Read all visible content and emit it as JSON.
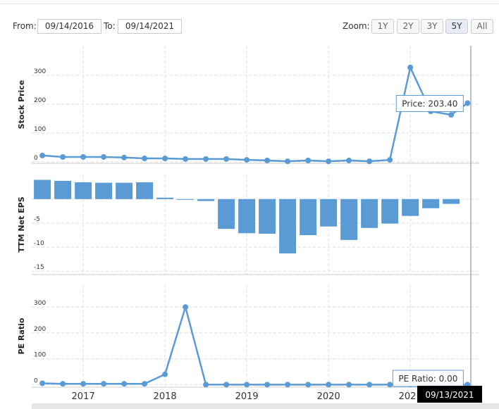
{
  "controls": {
    "from_label": "From:",
    "from": "09/14/2016",
    "to_label": "To:",
    "to": "09/14/2021",
    "zoom_label": "Zoom:",
    "zoom": [
      "1Y",
      "2Y",
      "3Y",
      "5Y",
      "All"
    ],
    "zoom_active": 3
  },
  "crosshair_date": "09/13/2021",
  "chart_data": [
    {
      "type": "line",
      "y_label": "Stock Price",
      "color": "#5b9bd5",
      "tooltip": "Price: 203.40",
      "x": [
        2016.5,
        2016.75,
        2017,
        2017.25,
        2017.5,
        2017.75,
        2018,
        2018.25,
        2018.5,
        2018.75,
        2019,
        2019.25,
        2019.5,
        2019.75,
        2020,
        2020.25,
        2020.5,
        2020.75,
        2021,
        2021.25,
        2021.5,
        2021.7
      ],
      "values": [
        22,
        17,
        17,
        17,
        15,
        12,
        12,
        10,
        10,
        10,
        7,
        5,
        2,
        5,
        2,
        5,
        2,
        7,
        327,
        175,
        163,
        203.4
      ],
      "xlim": [
        2016.37,
        2021.74
      ],
      "xticks": [
        2017,
        2018,
        2019,
        2020,
        2021
      ],
      "ylim": [
        -5,
        402
      ],
      "yticks": [
        0,
        100,
        200,
        300
      ],
      "grid": true
    },
    {
      "type": "bar",
      "y_label": "TTM Net EPS",
      "color": "#5b9bd5",
      "x": [
        2016.5,
        2016.75,
        2017,
        2017.25,
        2017.5,
        2017.75,
        2018,
        2018.25,
        2018.5,
        2018.75,
        2019,
        2019.25,
        2019.5,
        2019.75,
        2020,
        2020.25,
        2020.5,
        2020.75,
        2021,
        2021.25,
        2021.5
      ],
      "values": [
        4.0,
        3.8,
        3.5,
        3.4,
        3.4,
        3.5,
        0.3,
        -0.1,
        -0.4,
        -6.2,
        -7.1,
        -7.2,
        -11.3,
        -7.5,
        -5.7,
        -8.5,
        -6.0,
        -5.1,
        -3.5,
        -1.9,
        -1.0
      ],
      "xlim": [
        2016.37,
        2021.74
      ],
      "xticks": [
        2017,
        2018,
        2019,
        2020,
        2021
      ],
      "ylim": [
        -15.7,
        5.1
      ],
      "yticks": [
        0,
        -5,
        -10,
        -15
      ],
      "grid": true
    },
    {
      "type": "line",
      "y_label": "PE Ratio",
      "color": "#5b9bd5",
      "tooltip": "PE Ratio: 0.00",
      "x": [
        2016.5,
        2016.75,
        2017,
        2017.25,
        2017.5,
        2017.75,
        2018,
        2018.25,
        2018.5,
        2018.75,
        2019,
        2019.25,
        2019.5,
        2019.75,
        2020,
        2020.25,
        2020.5,
        2020.75,
        2021,
        2021.25,
        2021.5,
        2021.7
      ],
      "values": [
        5,
        3,
        3,
        3,
        3,
        3,
        40,
        300,
        0,
        0,
        0,
        0,
        0,
        0,
        0,
        0,
        0,
        0,
        0,
        0,
        0,
        0
      ],
      "xlim": [
        2016.37,
        2021.74
      ],
      "xticks": [
        2017,
        2018,
        2019,
        2020,
        2021
      ],
      "ylim": [
        -10,
        385
      ],
      "yticks": [
        0,
        100,
        200,
        300
      ],
      "grid": true
    }
  ]
}
